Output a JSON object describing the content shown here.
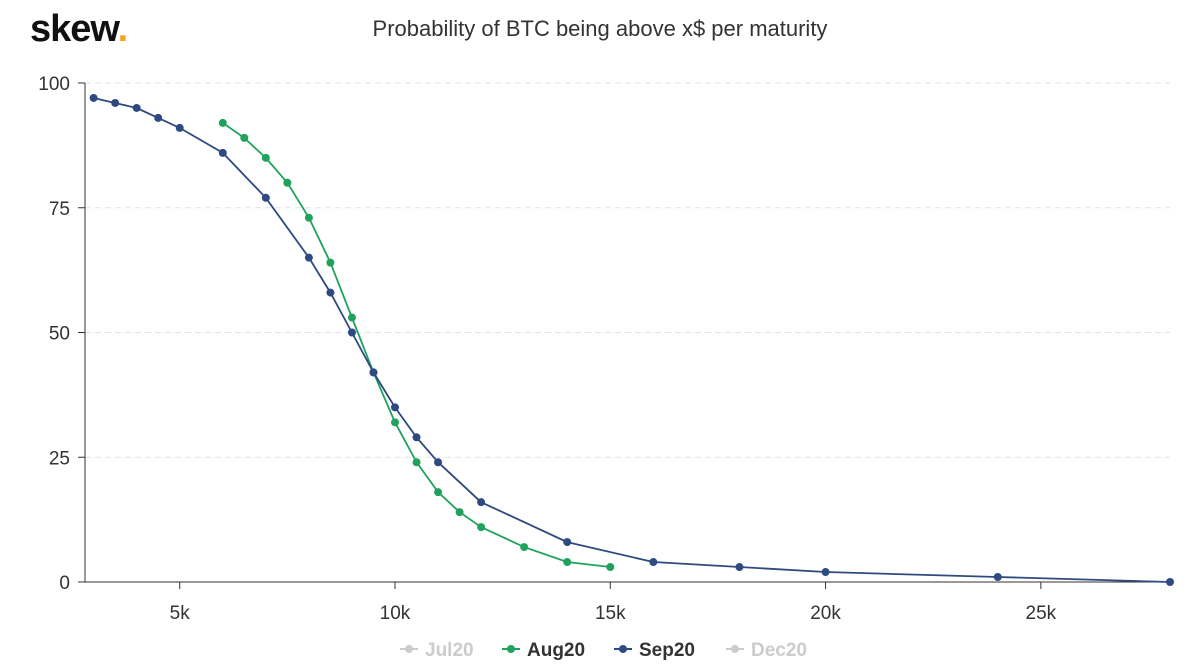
{
  "brand": {
    "name": "skew",
    "dot": "."
  },
  "chart_data": {
    "type": "line",
    "title": "Probability of BTC being above x$ per maturity",
    "xlabel": "",
    "ylabel": "",
    "xlim": [
      2800,
      28000
    ],
    "ylim": [
      0,
      100
    ],
    "x_ticks": [
      {
        "value": 5000,
        "label": "5k"
      },
      {
        "value": 10000,
        "label": "10k"
      },
      {
        "value": 15000,
        "label": "15k"
      },
      {
        "value": 20000,
        "label": "20k"
      },
      {
        "value": 25000,
        "label": "25k"
      }
    ],
    "y_ticks": [
      {
        "value": 0,
        "label": "0"
      },
      {
        "value": 25,
        "label": "25"
      },
      {
        "value": 50,
        "label": "50"
      },
      {
        "value": 75,
        "label": "75"
      },
      {
        "value": 100,
        "label": "100"
      }
    ],
    "grid": true,
    "legend_position": "bottom-center",
    "series": [
      {
        "name": "Jul20",
        "color": "#cccccc",
        "visible": false,
        "points": []
      },
      {
        "name": "Aug20",
        "color": "#1fa35c",
        "visible": true,
        "points": [
          [
            6000,
            92
          ],
          [
            6500,
            89
          ],
          [
            7000,
            85
          ],
          [
            7500,
            80
          ],
          [
            8000,
            73
          ],
          [
            8500,
            64
          ],
          [
            9000,
            53
          ],
          [
            9500,
            42
          ],
          [
            10000,
            32
          ],
          [
            10500,
            24
          ],
          [
            11000,
            18
          ],
          [
            11500,
            14
          ],
          [
            12000,
            11
          ],
          [
            13000,
            7
          ],
          [
            14000,
            4
          ],
          [
            15000,
            3
          ]
        ]
      },
      {
        "name": "Sep20",
        "color": "#2e4a80",
        "visible": true,
        "points": [
          [
            3000,
            97
          ],
          [
            3500,
            96
          ],
          [
            4000,
            95
          ],
          [
            4500,
            93
          ],
          [
            5000,
            91
          ],
          [
            6000,
            86
          ],
          [
            7000,
            77
          ],
          [
            8000,
            65
          ],
          [
            8500,
            58
          ],
          [
            9000,
            50
          ],
          [
            9500,
            42
          ],
          [
            10000,
            35
          ],
          [
            10500,
            29
          ],
          [
            11000,
            24
          ],
          [
            12000,
            16
          ],
          [
            14000,
            8
          ],
          [
            16000,
            4
          ],
          [
            18000,
            3
          ],
          [
            20000,
            2
          ],
          [
            24000,
            1
          ],
          [
            28000,
            0
          ]
        ]
      },
      {
        "name": "Dec20",
        "color": "#cccccc",
        "visible": false,
        "points": []
      }
    ]
  }
}
